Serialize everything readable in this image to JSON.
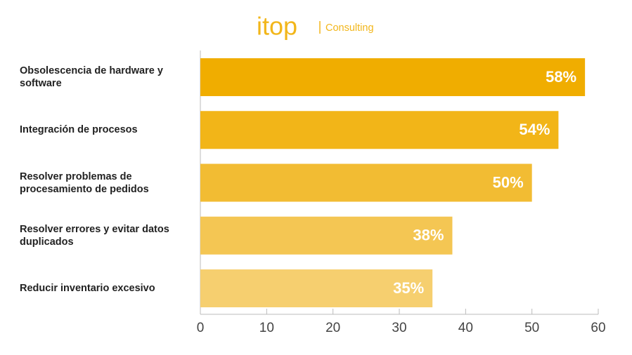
{
  "logo": {
    "brand": "itop",
    "tagline": "Consulting"
  },
  "chart_data": {
    "type": "hbar",
    "categories": [
      "Obsolescencia de hardware y software",
      "Integración de procesos",
      "Resolver problemas de procesamiento de pedidos",
      "Resolver errores y evitar datos duplicados",
      "Reducir inventario excesivo"
    ],
    "values": [
      58,
      54,
      50,
      38,
      35
    ],
    "value_labels": [
      "58%",
      "54%",
      "50%",
      "38%",
      "35%"
    ],
    "colors": [
      "#f0ad00",
      "#f2b518",
      "#f2bc33",
      "#f4c653",
      "#f6cf6f"
    ],
    "xlim": [
      0,
      60
    ],
    "xticks": [
      0,
      10,
      20,
      30,
      40,
      50,
      60
    ]
  }
}
